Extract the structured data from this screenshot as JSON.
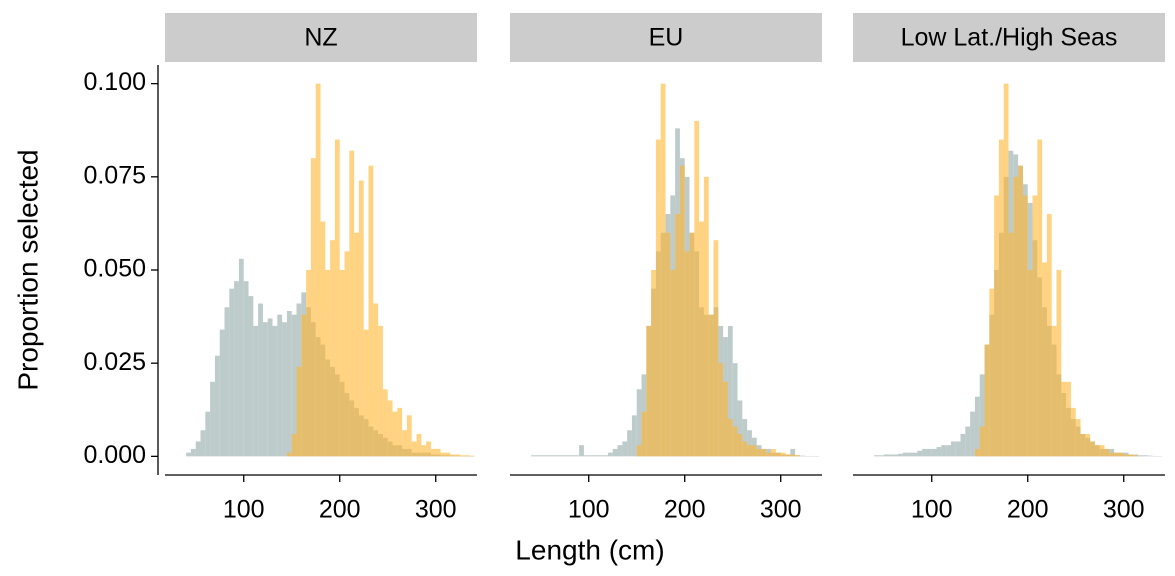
{
  "xlabel": "Length (cm)",
  "ylabel": "Proportion selected",
  "chart_data": [
    {
      "type": "histogram",
      "title": "NZ",
      "bins": [
        40,
        45,
        50,
        55,
        60,
        65,
        70,
        75,
        80,
        85,
        90,
        95,
        100,
        105,
        110,
        115,
        120,
        125,
        130,
        135,
        140,
        145,
        150,
        155,
        160,
        165,
        170,
        175,
        180,
        185,
        190,
        195,
        200,
        205,
        210,
        215,
        220,
        225,
        230,
        235,
        240,
        245,
        250,
        255,
        260,
        265,
        270,
        275,
        280,
        285,
        290,
        295,
        300,
        305,
        310,
        315,
        320,
        325,
        330,
        335,
        340
      ],
      "series": [
        {
          "color": "#b3c2c2",
          "alpha": 0.85,
          "values": [
            0.001,
            0.002,
            0.004,
            0.007,
            0.012,
            0.02,
            0.027,
            0.034,
            0.04,
            0.045,
            0.047,
            0.053,
            0.047,
            0.043,
            0.035,
            0.041,
            0.036,
            0.037,
            0.035,
            0.038,
            0.036,
            0.039,
            0.038,
            0.041,
            0.044,
            0.04,
            0.036,
            0.032,
            0.03,
            0.026,
            0.024,
            0.022,
            0.02,
            0.017,
            0.015,
            0.013,
            0.011,
            0.01,
            0.008,
            0.007,
            0.006,
            0.005,
            0.004,
            0.003,
            0.003,
            0.002,
            0.002,
            0.001,
            0.001,
            0.001,
            0.001,
            0.0005,
            0.0005,
            0.0003,
            0.0003,
            0.0002,
            0.0002,
            0.0001,
            0.0001,
            0.0001
          ]
        },
        {
          "color": "#ffb52e",
          "alpha": 0.6,
          "values": [
            0,
            0,
            0,
            0,
            0,
            0,
            0,
            0,
            0,
            0,
            0,
            0,
            0,
            0,
            0,
            0,
            0,
            0,
            0,
            0,
            0,
            0.001,
            0.006,
            0.024,
            0.038,
            0.05,
            0.08,
            0.1,
            0.063,
            0.05,
            0.058,
            0.085,
            0.05,
            0.055,
            0.082,
            0.06,
            0.074,
            0.034,
            0.078,
            0.041,
            0.035,
            0.018,
            0.015,
            0.012,
            0.013,
            0.007,
            0.011,
            0.004,
            0.006,
            0.003,
            0.004,
            0.002,
            0.002,
            0.001,
            0.001,
            0.0005,
            0.0005,
            0.0003,
            0.0003,
            0.0002
          ]
        }
      ],
      "xlim": [
        18,
        343
      ],
      "xticks": [
        100,
        200,
        300
      ],
      "ylim": [
        -0.005,
        0.105
      ],
      "yticks": [
        {
          "value": 0,
          "label": "0.000"
        },
        {
          "value": 0.025,
          "label": "0.025"
        },
        {
          "value": 0.05,
          "label": "0.050"
        },
        {
          "value": 0.075,
          "label": "0.075"
        },
        {
          "value": 0.1,
          "label": "0.100"
        }
      ]
    },
    {
      "type": "histogram",
      "title": "EU",
      "bins": [
        40,
        45,
        50,
        55,
        60,
        65,
        70,
        75,
        80,
        85,
        90,
        95,
        100,
        105,
        110,
        115,
        120,
        125,
        130,
        135,
        140,
        145,
        150,
        155,
        160,
        165,
        170,
        175,
        180,
        185,
        190,
        195,
        200,
        205,
        210,
        215,
        220,
        225,
        230,
        235,
        240,
        245,
        250,
        255,
        260,
        265,
        270,
        275,
        280,
        285,
        290,
        295,
        300,
        305,
        310,
        315,
        320,
        325,
        330,
        335,
        340
      ],
      "series": [
        {
          "color": "#b3c2c2",
          "alpha": 0.85,
          "values": [
            0.0003,
            0.0003,
            0.0003,
            0.0003,
            0.0003,
            0.0003,
            0.0003,
            0.0003,
            0.0003,
            0.0003,
            0.003,
            0.0003,
            0.0003,
            0.0003,
            0.0003,
            0.0003,
            0.001,
            0.002,
            0.003,
            0.004,
            0.007,
            0.011,
            0.018,
            0.022,
            0.035,
            0.045,
            0.055,
            0.06,
            0.065,
            0.07,
            0.088,
            0.08,
            0.075,
            0.06,
            0.055,
            0.04,
            0.038,
            0.038,
            0.04,
            0.035,
            0.032,
            0.035,
            0.025,
            0.015,
            0.01,
            0.007,
            0.005,
            0.003,
            0.002,
            0.002,
            0.001,
            0.001,
            0.0005,
            0.0005,
            0.002,
            0.0003,
            0.0002,
            0.0001,
            0.0001,
            0.0001
          ]
        },
        {
          "color": "#ffb52e",
          "alpha": 0.6,
          "values": [
            0,
            0,
            0,
            0,
            0,
            0,
            0,
            0,
            0,
            0,
            0,
            0,
            0,
            0,
            0,
            0,
            0,
            0,
            0,
            0,
            0,
            0,
            0.003,
            0.012,
            0.035,
            0.05,
            0.085,
            0.1,
            0.06,
            0.05,
            0.065,
            0.078,
            0.055,
            0.06,
            0.09,
            0.063,
            0.075,
            0.038,
            0.058,
            0.025,
            0.02,
            0.01,
            0.008,
            0.006,
            0.004,
            0.003,
            0.003,
            0.002,
            0.002,
            0.001,
            0.002,
            0.001,
            0.001,
            0.0005,
            0.0005,
            0.0003,
            0,
            0,
            0,
            0
          ]
        }
      ],
      "xlim": [
        18,
        343
      ],
      "xticks": [
        100,
        200,
        300
      ]
    },
    {
      "type": "histogram",
      "title": "Low Lat./High Seas",
      "bins": [
        40,
        45,
        50,
        55,
        60,
        65,
        70,
        75,
        80,
        85,
        90,
        95,
        100,
        105,
        110,
        115,
        120,
        125,
        130,
        135,
        140,
        145,
        150,
        155,
        160,
        165,
        170,
        175,
        180,
        185,
        190,
        195,
        200,
        205,
        210,
        215,
        220,
        225,
        230,
        235,
        240,
        245,
        250,
        255,
        260,
        265,
        270,
        275,
        280,
        285,
        290,
        295,
        300,
        305,
        310,
        315,
        320,
        325,
        330,
        335,
        340
      ],
      "series": [
        {
          "color": "#b3c2c2",
          "alpha": 0.85,
          "values": [
            0.0003,
            0.0003,
            0.0005,
            0.0005,
            0.0005,
            0.0007,
            0.001,
            0.001,
            0.001,
            0.0015,
            0.002,
            0.002,
            0.002,
            0.0025,
            0.003,
            0.003,
            0.004,
            0.004,
            0.006,
            0.008,
            0.012,
            0.016,
            0.022,
            0.03,
            0.038,
            0.05,
            0.06,
            0.075,
            0.082,
            0.081,
            0.078,
            0.073,
            0.068,
            0.058,
            0.048,
            0.04,
            0.035,
            0.03,
            0.022,
            0.017,
            0.013,
            0.01,
            0.008,
            0.006,
            0.005,
            0.004,
            0.003,
            0.002,
            0.002,
            0.002,
            0.001,
            0.001,
            0.001,
            0.0005,
            0.0005,
            0.0003,
            0.0003,
            0.0002,
            0.0001,
            0.0001
          ]
        },
        {
          "color": "#ffb52e",
          "alpha": 0.6,
          "values": [
            0,
            0,
            0,
            0,
            0,
            0,
            0,
            0,
            0,
            0,
            0,
            0,
            0,
            0,
            0,
            0,
            0,
            0,
            0,
            0,
            0,
            0.002,
            0.008,
            0.03,
            0.045,
            0.07,
            0.085,
            0.1,
            0.06,
            0.075,
            0.078,
            0.07,
            0.05,
            0.07,
            0.085,
            0.052,
            0.065,
            0.035,
            0.05,
            0.02,
            0.02,
            0.013,
            0.01,
            0.006,
            0.006,
            0.004,
            0.003,
            0.003,
            0.002,
            0.001,
            0.001,
            0.001,
            0.0005,
            0.0005,
            0.0003,
            0,
            0,
            0,
            0,
            0
          ]
        }
      ],
      "xlim": [
        18,
        343
      ],
      "xticks": [
        100,
        200,
        300
      ]
    }
  ]
}
